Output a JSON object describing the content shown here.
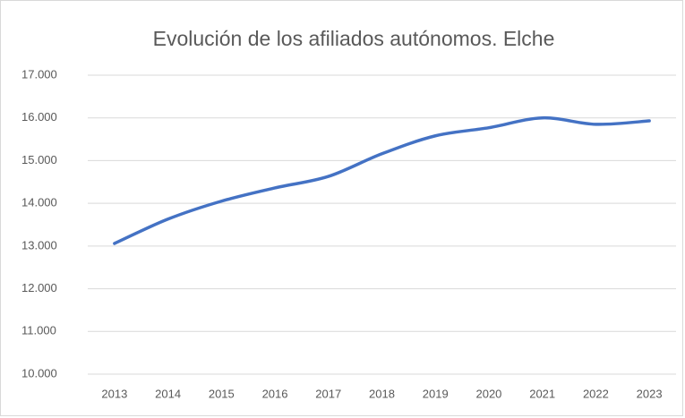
{
  "chart_data": {
    "type": "line",
    "title": "Evolución de los afiliados autónomos. Elche",
    "categories": [
      "2013",
      "2014",
      "2015",
      "2016",
      "2017",
      "2018",
      "2019",
      "2020",
      "2021",
      "2022",
      "2023"
    ],
    "series": [
      {
        "name": "Afiliados autónomos",
        "color": "#4472c4",
        "values": [
          13060,
          13630,
          14050,
          14360,
          14630,
          15160,
          15580,
          15770,
          16000,
          15850,
          15930
        ]
      }
    ],
    "ylim": [
      10000,
      17000
    ],
    "yticks": [
      {
        "value": 10000,
        "label": "10.000"
      },
      {
        "value": 11000,
        "label": "11.000"
      },
      {
        "value": 12000,
        "label": "12.000"
      },
      {
        "value": 13000,
        "label": "13.000"
      },
      {
        "value": 14000,
        "label": "14.000"
      },
      {
        "value": 15000,
        "label": "15.000"
      },
      {
        "value": 16000,
        "label": "16.000"
      },
      {
        "value": 17000,
        "label": "17.000"
      }
    ],
    "grid": true,
    "smooth": true
  }
}
